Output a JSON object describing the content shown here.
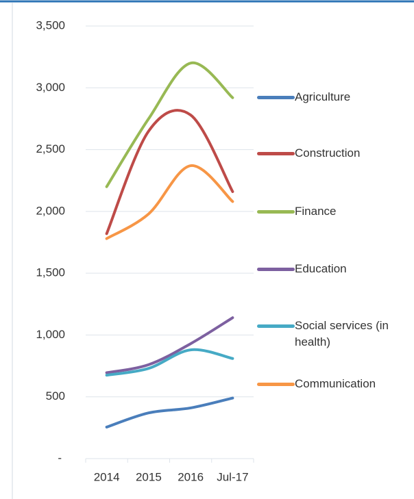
{
  "chart_data": {
    "type": "line",
    "categories": [
      "2014",
      "2015",
      "2016",
      "Jul-17"
    ],
    "series": [
      {
        "name": "Agriculture",
        "color": "#4a7ebb",
        "values": [
          255,
          370,
          410,
          490
        ]
      },
      {
        "name": "Construction",
        "color": "#be4b48",
        "values": [
          1820,
          2650,
          2780,
          2160
        ]
      },
      {
        "name": "Finance",
        "color": "#98b954",
        "values": [
          2200,
          2750,
          3200,
          2920
        ]
      },
      {
        "name": "Education",
        "color": "#7d60a0",
        "values": [
          695,
          760,
          930,
          1140
        ]
      },
      {
        "name": "Social services (in health)",
        "color": "#46aac5",
        "values": [
          675,
          730,
          880,
          810
        ]
      },
      {
        "name": "Communication",
        "color": "#f79646",
        "values": [
          1780,
          1980,
          2370,
          2080
        ]
      }
    ],
    "ylim": [
      0,
      3500
    ],
    "yticks": [
      {
        "value": 0,
        "label": "-"
      },
      500,
      {
        "value": 1000,
        "label": "1,000"
      },
      {
        "value": 1500,
        "label": "1,500"
      },
      {
        "value": 2000,
        "label": "2,000"
      },
      {
        "value": 2500,
        "label": "2,500"
      },
      {
        "value": 3000,
        "label": "3,000"
      },
      {
        "value": 3500,
        "label": "3,500"
      }
    ],
    "grid": true,
    "smooth": true,
    "legend": "right"
  }
}
